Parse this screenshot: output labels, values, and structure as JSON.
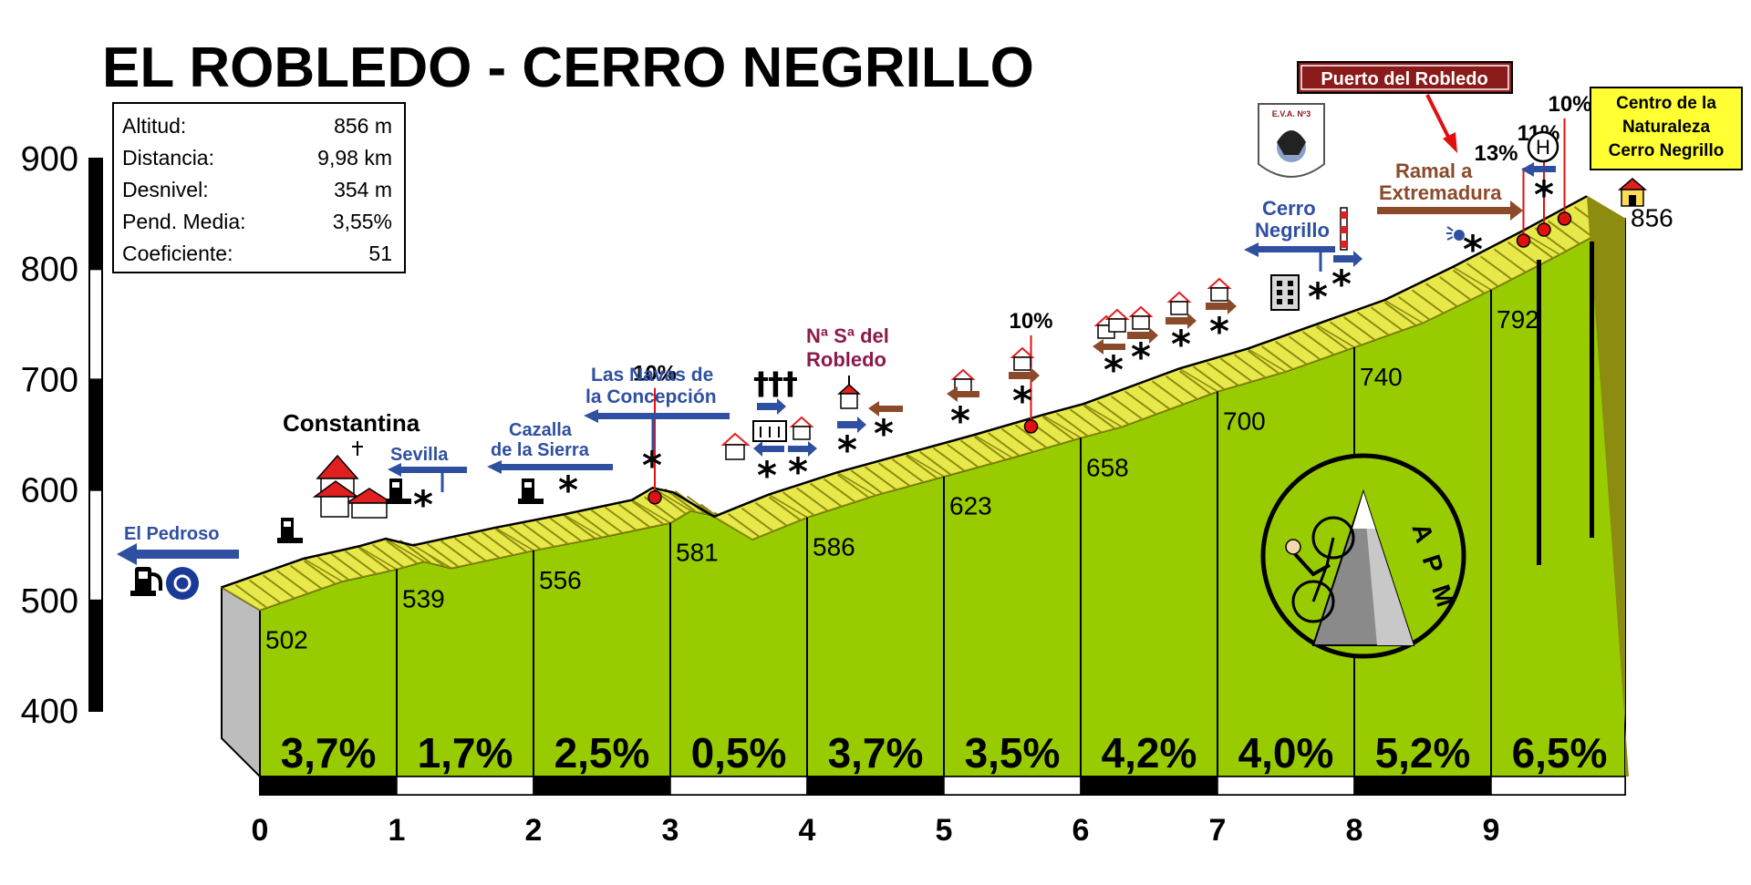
{
  "title": "EL ROBLEDO - CERRO NEGRILLO",
  "info_box": {
    "rows": [
      {
        "label": "Altitud:",
        "value": "856 m"
      },
      {
        "label": "Distancia:",
        "value": "9,98 km"
      },
      {
        "label": "Desnivel:",
        "value": "354 m"
      },
      {
        "label": "Pend. Media:",
        "value": "3,55%"
      },
      {
        "label": "Coeficiente:",
        "value": "51"
      }
    ]
  },
  "labels": {
    "el_pedroso": "El Pedroso",
    "constantina": "Constantina",
    "sevilla": "Sevilla",
    "cazalla_1": "Cazalla",
    "cazalla_2": "de la Sierra",
    "navas_1": "Las Navas de",
    "navas_2": "la Concepción",
    "robledo_1": "Nª Sª del",
    "robledo_2": "Robledo",
    "cerro_1": "Cerro",
    "cerro_2": "Negrillo",
    "ramal_1": "Ramal a",
    "ramal_2": "Extremadura",
    "puerto": "Puerto del Robledo",
    "centro_1": "Centro de la",
    "centro_2": "Naturaleza",
    "centro_3": "Cerro Negrillo",
    "logo": "APM",
    "eva": "E.V.A. Nº3",
    "heli": "H"
  },
  "peak_labels": [
    {
      "text": "10%",
      "km": 3.1
    },
    {
      "text": "10%",
      "km": 5.85
    },
    {
      "text": "13%",
      "km": 9.45
    },
    {
      "text": "11%",
      "km": 9.6
    },
    {
      "text": "10%",
      "km": 9.75
    }
  ],
  "colors": {
    "profile_fill": "#99cc00",
    "road_yellow": "#e8e84a",
    "road_dark": "#8c8c10",
    "side_grey": "#bdbdbd",
    "blue_arrow": "#2f4fa0",
    "brown_arrow": "#8b4a2a",
    "red_marker": "#e01010",
    "puerto_box": "#8b1a1a",
    "centro_box": "#ffff33",
    "robledo_text": "#8b1a4a",
    "blue_text": "#2f4fa0"
  },
  "chart_data": {
    "type": "area",
    "title": "EL ROBLEDO - CERRO NEGRILLO",
    "ylim": [
      400,
      900
    ],
    "xlim": [
      0,
      10
    ],
    "y_ticks": [
      "400",
      "500",
      "600",
      "700",
      "800",
      "900"
    ],
    "x_ticks": [
      "0",
      "1",
      "2",
      "3",
      "4",
      "5",
      "6",
      "7",
      "8",
      "9"
    ],
    "km_altitudes": [
      {
        "km": 0,
        "alt": 502,
        "label": "502"
      },
      {
        "km": 1,
        "alt": 539,
        "label": "539"
      },
      {
        "km": 2,
        "alt": 556,
        "label": "556"
      },
      {
        "km": 3,
        "alt": 581,
        "label": "581"
      },
      {
        "km": 4,
        "alt": 586,
        "label": "586"
      },
      {
        "km": 5,
        "alt": 623,
        "label": "623"
      },
      {
        "km": 6,
        "alt": 658,
        "label": "658"
      },
      {
        "km": 7,
        "alt": 700,
        "label": "700"
      },
      {
        "km": 8,
        "alt": 740,
        "label": "740"
      },
      {
        "km": 9,
        "alt": 792,
        "label": "792"
      },
      {
        "km": 9.98,
        "alt": 856,
        "label": "856"
      }
    ],
    "segment_gradients": [
      "3,7%",
      "1,7%",
      "2,5%",
      "0,5%",
      "3,7%",
      "3,5%",
      "4,2%",
      "4,0%",
      "5,2%",
      "6,5%"
    ],
    "profile_points": [
      [
        0,
        502
      ],
      [
        0.6,
        528
      ],
      [
        1.0,
        539
      ],
      [
        1.2,
        546
      ],
      [
        1.4,
        540
      ],
      [
        2.0,
        556
      ],
      [
        2.5,
        568
      ],
      [
        3.0,
        581
      ],
      [
        3.15,
        592
      ],
      [
        3.3,
        588
      ],
      [
        3.6,
        566
      ],
      [
        4.0,
        586
      ],
      [
        4.5,
        606
      ],
      [
        5.0,
        623
      ],
      [
        5.5,
        640
      ],
      [
        6.0,
        658
      ],
      [
        6.3,
        668
      ],
      [
        7.0,
        700
      ],
      [
        7.5,
        718
      ],
      [
        8.0,
        740
      ],
      [
        8.5,
        762
      ],
      [
        9.0,
        792
      ],
      [
        9.5,
        824
      ],
      [
        9.98,
        856
      ]
    ]
  }
}
